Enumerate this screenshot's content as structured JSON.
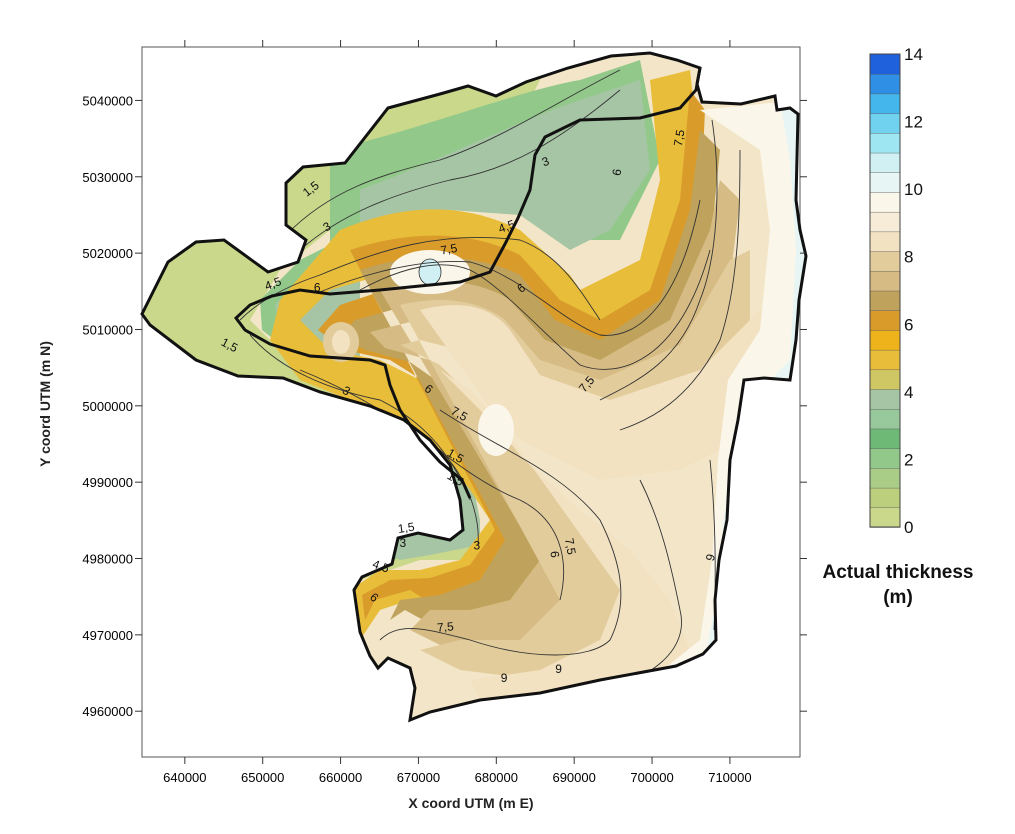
{
  "chart_data": {
    "type": "heatmap",
    "subtype": "filled-contour-map",
    "title": "",
    "xlabel": "X coord UTM (m E)",
    "ylabel": "Y coord UTM (m N)",
    "xlim": [
      634500,
      719000
    ],
    "ylim": [
      4954000,
      5047000
    ],
    "x_ticks": [
      640000,
      650000,
      660000,
      670000,
      680000,
      690000,
      700000,
      710000
    ],
    "x_tick_labels": [
      "640000",
      "650000",
      "660000",
      "670000",
      "680000",
      "690000",
      "700000",
      "710000"
    ],
    "y_ticks": [
      4960000,
      4970000,
      4980000,
      4990000,
      5000000,
      5010000,
      5020000,
      5030000,
      5040000
    ],
    "y_tick_labels": [
      "4960000",
      "4970000",
      "4980000",
      "4990000",
      "5000000",
      "5010000",
      "5020000",
      "5030000",
      "5040000"
    ],
    "grid": false,
    "colorbar": {
      "title_line1": "Actual thickness",
      "title_line2": "(m)",
      "min": 0,
      "max": 14,
      "step": 0.75,
      "ticks": [
        0,
        2,
        4,
        6,
        8,
        10,
        12,
        14
      ],
      "tick_labels": [
        "0",
        "2",
        "4",
        "6",
        "8",
        "10",
        "12",
        "14"
      ],
      "colors": [
        "#c9d88a",
        "#bccf7c",
        "#a9cd86",
        "#92c98a",
        "#6fb977",
        "#97c99c",
        "#a6c5a4",
        "#cfc763",
        "#e8bd3a",
        "#eeb21b",
        "#d99c2b",
        "#bfa25b",
        "#d6bc84",
        "#e3cc9c",
        "#f2e2c2",
        "#f6ecd8",
        "#fbf6ea",
        "#e7f6f4",
        "#d0f0f4",
        "#9ee6f2",
        "#70d2ee",
        "#45b6ec",
        "#2f8fe4",
        "#1f60dc"
      ]
    },
    "contour_levels": [
      1.5,
      3,
      4.5,
      6,
      7.5,
      9
    ],
    "contour_label_texts": [
      "1,5",
      "3",
      "4,5",
      "6",
      "7,5",
      "9"
    ],
    "contour_labels": [
      {
        "text": "1,5",
        "x": 656500,
        "y": 5028000,
        "angle": -38
      },
      {
        "text": "3",
        "x": 658500,
        "y": 5023000,
        "angle": -30
      },
      {
        "text": "4,5",
        "x": 651500,
        "y": 5015500,
        "angle": -20
      },
      {
        "text": "6",
        "x": 657000,
        "y": 5015000,
        "angle": 0
      },
      {
        "text": "7,5",
        "x": 674000,
        "y": 5020000,
        "angle": -10
      },
      {
        "text": "1,5",
        "x": 645500,
        "y": 5007500,
        "angle": 28
      },
      {
        "text": "3",
        "x": 660500,
        "y": 5001500,
        "angle": 30
      },
      {
        "text": "6",
        "x": 671000,
        "y": 5001800,
        "angle": 38
      },
      {
        "text": "7,5",
        "x": 675000,
        "y": 4998500,
        "angle": 30
      },
      {
        "text": "1,5",
        "x": 674500,
        "y": 4993000,
        "angle": 30
      },
      {
        "text": "1,5",
        "x": 674500,
        "y": 4990000,
        "angle": 30
      },
      {
        "text": "1,5",
        "x": 668500,
        "y": 4983500,
        "angle": -8
      },
      {
        "text": "3",
        "x": 668000,
        "y": 4981500,
        "angle": 0
      },
      {
        "text": "3",
        "x": 677500,
        "y": 4981200,
        "angle": 0
      },
      {
        "text": "4,5",
        "x": 665000,
        "y": 4978500,
        "angle": 20
      },
      {
        "text": "6",
        "x": 664000,
        "y": 4974500,
        "angle": 40
      },
      {
        "text": "6",
        "x": 687000,
        "y": 4980500,
        "angle": 85
      },
      {
        "text": "7,5",
        "x": 673500,
        "y": 4970500,
        "angle": -5
      },
      {
        "text": "7,5",
        "x": 689000,
        "y": 4981500,
        "angle": 80
      },
      {
        "text": "7,5",
        "x": 692000,
        "y": 5002500,
        "angle": -50
      },
      {
        "text": "6",
        "x": 683500,
        "y": 5015000,
        "angle": -35
      },
      {
        "text": "4,5",
        "x": 681500,
        "y": 5023000,
        "angle": -20
      },
      {
        "text": "3",
        "x": 686500,
        "y": 5031500,
        "angle": -20
      },
      {
        "text": "6",
        "x": 696000,
        "y": 5030500,
        "angle": -80
      },
      {
        "text": "7,5",
        "x": 704000,
        "y": 5035000,
        "angle": -80
      },
      {
        "text": "9",
        "x": 681000,
        "y": 4963800,
        "angle": 0
      },
      {
        "text": "9",
        "x": 688000,
        "y": 4965000,
        "angle": 0
      },
      {
        "text": "9",
        "x": 708000,
        "y": 4980000,
        "angle": -75
      }
    ]
  }
}
